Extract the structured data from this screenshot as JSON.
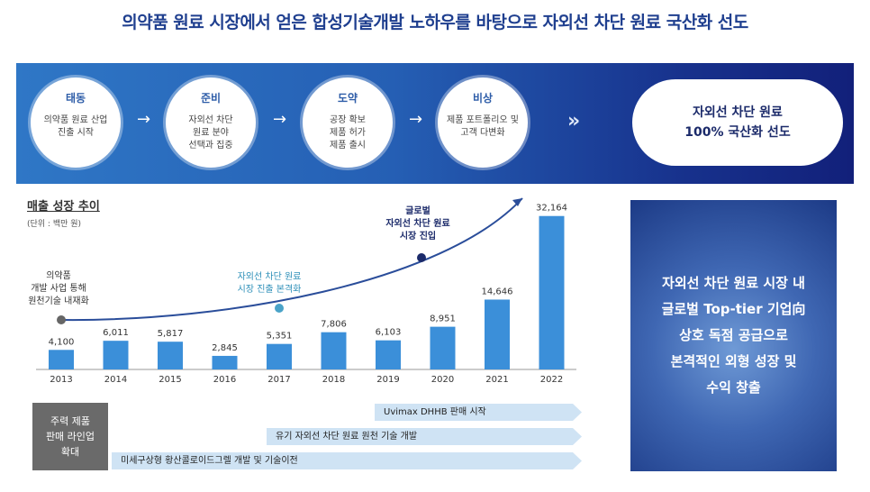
{
  "title": "의약품 원료 시장에서 얻은 합성기술개발 노하우를 바탕으로 자외선 차단 원료 국산화 선도",
  "stages": [
    {
      "name": "태동",
      "desc": "의약품 원료 산업\n진출 시작"
    },
    {
      "name": "준비",
      "desc": "자외선 차단\n원료 분야\n선택과 집중"
    },
    {
      "name": "도약",
      "desc": "공장 확보\n제품 허가\n제품 출시"
    },
    {
      "name": "비상",
      "desc": "제품 포트폴리오 및\n고객 다변화"
    }
  ],
  "arrow_glyph": "→",
  "chevron_glyph": "»",
  "goal": "자외선 차단 원료\n100% 국산화 선도",
  "chart_heading": "매출 성장 추이",
  "chart_unit": "(단위 : 백만 원)",
  "chart_data": {
    "type": "bar",
    "categories": [
      "2013",
      "2014",
      "2015",
      "2016",
      "2017",
      "2018",
      "2019",
      "2020",
      "2021",
      "2022"
    ],
    "values": [
      4100,
      6011,
      5817,
      2845,
      5351,
      7806,
      6103,
      8951,
      14646,
      32164
    ],
    "value_labels": [
      "4,100",
      "6,011",
      "5,817",
      "2,845",
      "5,351",
      "7,806",
      "6,103",
      "8,951",
      "14,646",
      "32,164"
    ],
    "bar_color": "#3b8fd9",
    "ylim": [
      0,
      34000
    ],
    "annotations": [
      {
        "text": "의약품\n개발 사업 통해\n원천기술 내재화",
        "year": "2013"
      },
      {
        "text": "자외선 차단 원료\n시장 진출 본격화",
        "year": "2017"
      },
      {
        "text": "글로벌\n자외선 차단 원료\n시장 진입",
        "year": "2019"
      }
    ]
  },
  "side_text": "자외선 차단 원료 시장 내\n글로벌 Top-tier 기업向\n상호 독점 공급으로\n본격적인 외형 성장 및\n수익 창출",
  "product_box": "주력 제품\n판매 라인업\n확대",
  "timeline": [
    "Uvimax DHHB 판매 시작",
    "유기 자외선 차단 원료 원천 기술 개발",
    "미세구상형 황산콜로이드그렐 개발 및 기술이전"
  ]
}
